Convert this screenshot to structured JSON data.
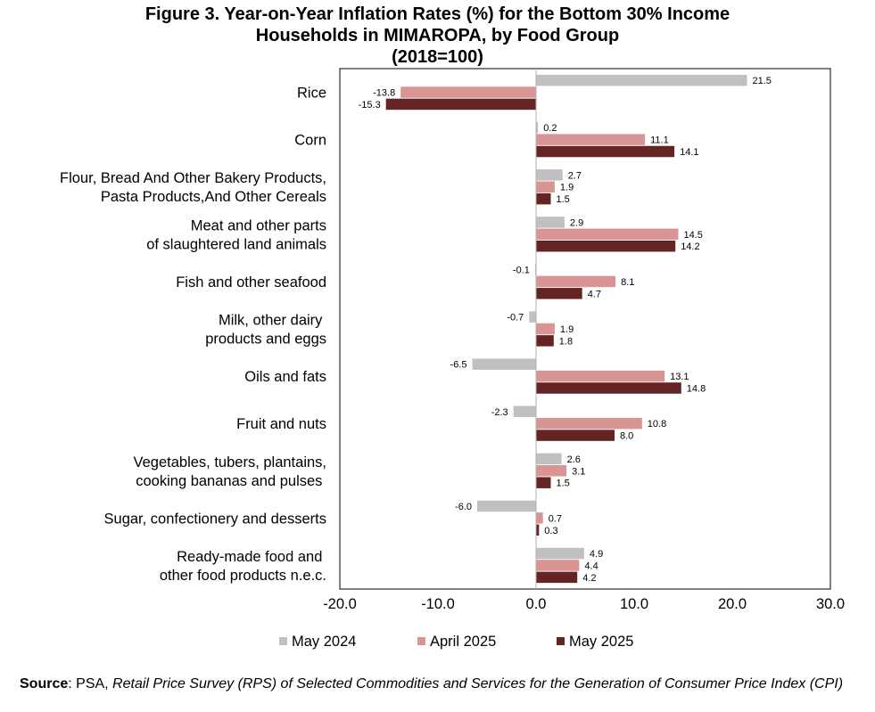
{
  "title_lines": [
    "Figure 3. Year-on-Year Inflation Rates (%) for the Bottom 30% Income",
    "Households in MIMAROPA, by Food Group",
    "(2018=100)"
  ],
  "chart_data": {
    "type": "bar",
    "orientation": "horizontal",
    "title": "Figure 3. Year-on-Year Inflation Rates (%) for the Bottom 30% Income Households in MIMAROPA, by Food Group (2018=100)",
    "categories": [
      [
        "Rice"
      ],
      [
        "Corn"
      ],
      [
        "Flour, Bread And Other Bakery Products,",
        "Pasta Products,And Other Cereals"
      ],
      [
        "Meat and other parts",
        "of slaughtered land animals"
      ],
      [
        "Fish and other seafood"
      ],
      [
        "Milk, other dairy ",
        "products and eggs"
      ],
      [
        "Oils and fats"
      ],
      [
        "Fruit and nuts"
      ],
      [
        "Vegetables, tubers, plantains,",
        "cooking bananas and pulses "
      ],
      [
        "Sugar, confectionery and desserts"
      ],
      [
        "Ready-made food and ",
        "other food products n.e.c."
      ]
    ],
    "series": [
      {
        "name": "May 2024",
        "color": "#c0c0c0",
        "values": [
          21.5,
          0.2,
          2.7,
          2.9,
          -0.1,
          -0.7,
          -6.5,
          -2.3,
          2.6,
          -6.0,
          4.9
        ]
      },
      {
        "name": "April 2025",
        "color": "#d99594",
        "values": [
          -13.8,
          11.1,
          1.9,
          14.5,
          8.1,
          1.9,
          13.1,
          10.8,
          3.1,
          0.7,
          4.4
        ]
      },
      {
        "name": "May 2025",
        "color": "#632423",
        "values": [
          -15.3,
          14.1,
          1.5,
          14.2,
          4.7,
          1.8,
          14.8,
          8.0,
          1.5,
          0.3,
          4.2
        ]
      }
    ],
    "xlim": [
      -20,
      30
    ],
    "xticks": [
      "-20.0",
      "-10.0",
      "0.0",
      "10.0",
      "20.0",
      "30.0"
    ],
    "xtick_values": [
      -20,
      -10,
      0,
      10,
      20,
      30
    ],
    "grid": false,
    "legend_position": "bottom"
  },
  "source": {
    "label": "Source",
    "text": ": PSA, ",
    "italic": "Retail Price Survey (RPS) of Selected Commodities and Services for the Generation of Consumer Price Index (CPI)"
  }
}
